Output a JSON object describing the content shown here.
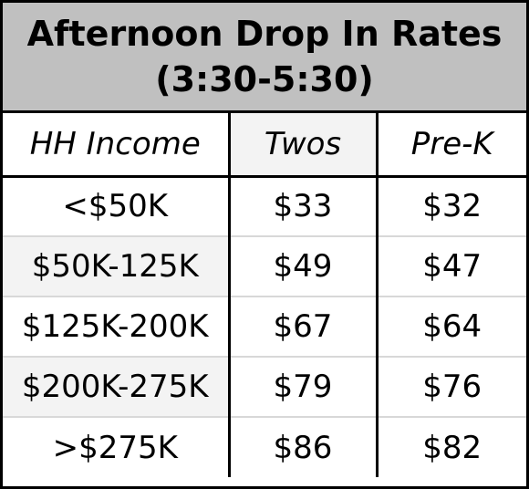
{
  "title": {
    "line1": "Afternoon Drop In Rates",
    "line2": "(3:30-5:30)"
  },
  "headers": [
    "HH Income",
    "Twos",
    "Pre-K"
  ],
  "rows": [
    {
      "income": "<$50K",
      "twos": "$33",
      "prek": "$32"
    },
    {
      "income": "$50K-125K",
      "twos": "$49",
      "prek": "$47"
    },
    {
      "income": "$125K-200K",
      "twos": "$67",
      "prek": "$64"
    },
    {
      "income": "$200K-275K",
      "twos": "$79",
      "prek": "$76"
    },
    {
      "income": ">$275K",
      "twos": "$86",
      "prek": "$82"
    }
  ],
  "colors": {
    "title_background": "#c0c0c0",
    "shaded_cell": "#f3f3f3",
    "border": "#000000",
    "row_divider": "#d8d8d8"
  }
}
